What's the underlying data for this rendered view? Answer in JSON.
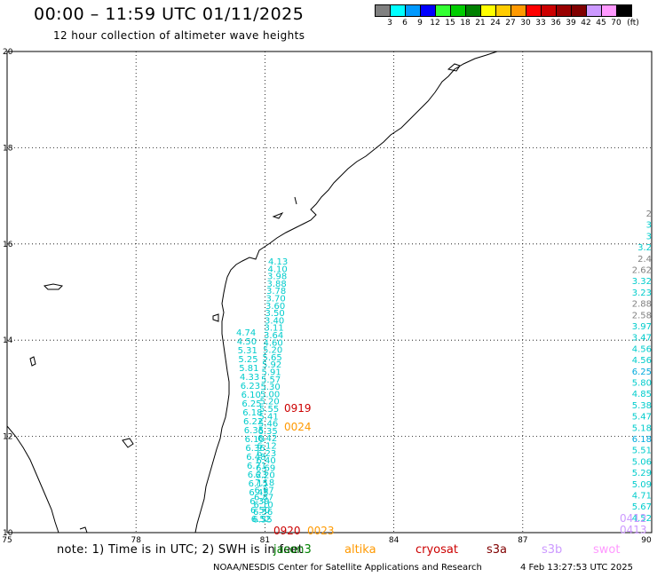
{
  "header": {
    "title": "00:00 – 11:59 UTC 01/11/2025",
    "subtitle": "12 hour collection of altimeter wave heights"
  },
  "colorscale": {
    "colors": [
      "#808080",
      "#00ffff",
      "#0099ff",
      "#0000ff",
      "#33ff33",
      "#00cc00",
      "#008000",
      "#ffff00",
      "#ffcc00",
      "#ff9900",
      "#ff0000",
      "#cc0000",
      "#990000",
      "#800000",
      "#cc99ff",
      "#ff99ff",
      "#000000"
    ],
    "labels": [
      "3",
      "6",
      "9",
      "12",
      "15",
      "18",
      "21",
      "24",
      "27",
      "30",
      "33",
      "36",
      "39",
      "42",
      "45",
      "70",
      "(ft)"
    ]
  },
  "axes": {
    "lon_ticks": [
      "75",
      "78",
      "81",
      "84",
      "87",
      "90"
    ],
    "lat_ticks": [
      "20",
      "18",
      "16",
      "14",
      "12",
      "10"
    ]
  },
  "tracks": {
    "cyan_track": [
      "4.13",
      "4.10",
      "3.98",
      "3.88",
      "3.78",
      "3.70",
      "3.60",
      "3.50",
      "3.40",
      "3.11",
      "3.64",
      "4.60",
      "5.20",
      "5.65",
      "5.92",
      "5.91",
      "5.57",
      "5.30",
      "5.00",
      "5.20",
      "5.55",
      "5.41",
      "5.46",
      "6.35",
      "6.42",
      "6.12",
      "6.23",
      "6.40",
      "6.69",
      "6.20",
      "7.18",
      "6.97",
      "6.87",
      "6.10",
      "6.56",
      "6.55"
    ],
    "cyan_left_labels": [
      "4.74",
      "4.50",
      "5.31",
      "5.25",
      "5.81",
      "4.33",
      "6.23",
      "6.10",
      "6.25",
      "6.18",
      "6.22",
      "6.35",
      "6.10",
      "6.36",
      "6.48",
      "6.71",
      "6.23",
      "6.15",
      "6.45",
      "6.39",
      "6.50",
      "6.52"
    ],
    "right_column": [
      {
        "v": "2",
        "c": "#808080"
      },
      {
        "v": "3",
        "c": "#00cccc"
      },
      {
        "v": "3",
        "c": "#00cccc"
      },
      {
        "v": "3.2",
        "c": "#00cccc"
      },
      {
        "v": "2.4",
        "c": "#808080"
      },
      {
        "v": "2.62",
        "c": "#808080"
      },
      {
        "v": "3.32",
        "c": "#00cccc"
      },
      {
        "v": "3.23",
        "c": "#00cccc"
      },
      {
        "v": "2.88",
        "c": "#808080"
      },
      {
        "v": "2.58",
        "c": "#808080"
      },
      {
        "v": "3.97",
        "c": "#00cccc"
      },
      {
        "v": "3.47",
        "c": "#00cccc"
      },
      {
        "v": "4.56",
        "c": "#00cccc"
      },
      {
        "v": "4.56",
        "c": "#00cccc"
      },
      {
        "v": "6.25",
        "c": "#00aadd"
      },
      {
        "v": "5.80",
        "c": "#00cccc"
      },
      {
        "v": "4.85",
        "c": "#00cccc"
      },
      {
        "v": "5.38",
        "c": "#00cccc"
      },
      {
        "v": "5.47",
        "c": "#00cccc"
      },
      {
        "v": "5.18",
        "c": "#00cccc"
      },
      {
        "v": "6.18",
        "c": "#00aadd"
      },
      {
        "v": "5.51",
        "c": "#00cccc"
      },
      {
        "v": "5.06",
        "c": "#00cccc"
      },
      {
        "v": "5.29",
        "c": "#00cccc"
      },
      {
        "v": "5.09",
        "c": "#00cccc"
      },
      {
        "v": "4.71",
        "c": "#00cccc"
      },
      {
        "v": "5.67",
        "c": "#00cccc"
      },
      {
        "v": "4.52",
        "c": "#00cccc"
      }
    ],
    "time_labels": [
      {
        "t": "0919",
        "c": "#cc0000"
      },
      {
        "t": "0024",
        "c": "#ff9900"
      },
      {
        "t": "0920",
        "c": "#cc0000"
      },
      {
        "t": "0023",
        "c": "#ff9900"
      },
      {
        "t": "0412",
        "c": "#cc99ff"
      },
      {
        "t": "0413",
        "c": "#cc99ff"
      }
    ]
  },
  "footer": {
    "note": "note: 1) Time is in UTC; 2) SWH is in feet",
    "satellites": [
      {
        "name": "jason3",
        "color": "#008000"
      },
      {
        "name": "altika",
        "color": "#ff9900"
      },
      {
        "name": "cryosat",
        "color": "#cc0000"
      },
      {
        "name": "s3a",
        "color": "#800000"
      },
      {
        "name": "s3b",
        "color": "#cc99ff"
      },
      {
        "name": "swot",
        "color": "#ff99ff"
      }
    ],
    "credit": "NOAA/NESDIS Center for Satellite Applications and Research",
    "timestamp": "4 Feb 13:27:53 UTC 2025"
  }
}
